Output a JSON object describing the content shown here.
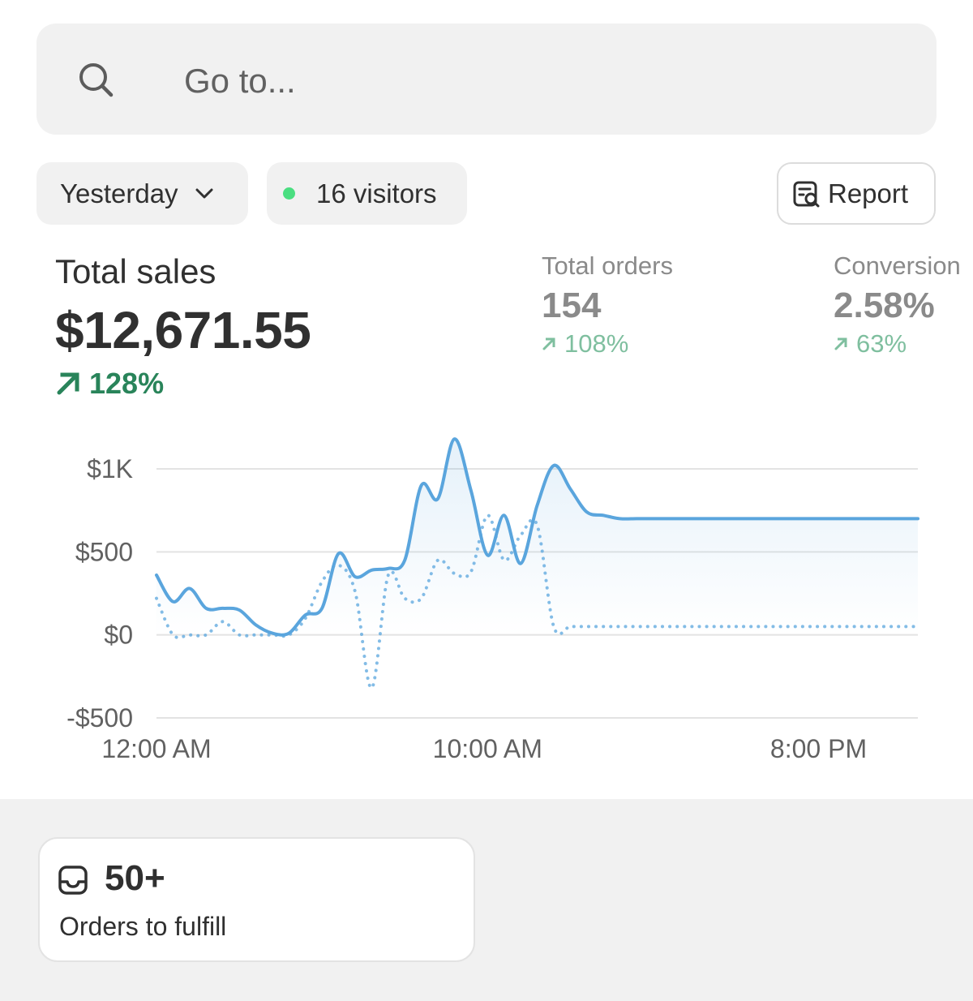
{
  "search": {
    "placeholder": "Go to..."
  },
  "filters": {
    "date_label": "Yesterday",
    "visitors_label": "16 visitors",
    "report_label": "Report"
  },
  "metrics": {
    "total_sales": {
      "label": "Total sales",
      "value": "$12,671.55",
      "change": "128%"
    },
    "total_orders": {
      "label": "Total orders",
      "value": "154",
      "change": "108%"
    },
    "conversion": {
      "label": "Conversion",
      "value": "2.58%",
      "change": "63%"
    }
  },
  "colors": {
    "accent_line": "#5aa5dd",
    "positive": "#29845a",
    "visitors_dot": "#4ade80"
  },
  "chart_data": {
    "type": "line",
    "title": "",
    "xlabel": "",
    "ylabel": "",
    "ylim": [
      -500,
      1000
    ],
    "y_ticks": [
      "$1K",
      "$500",
      "$0",
      "-$500"
    ],
    "y_tick_values": [
      1000,
      500,
      0,
      -500
    ],
    "x_tick_labels": [
      "12:00 AM",
      "10:00 AM",
      "8:00 PM"
    ],
    "x_tick_positions": [
      0,
      10,
      20
    ],
    "xlim": [
      0,
      23
    ],
    "grid": true,
    "series": [
      {
        "style": "solid",
        "x": [
          0,
          0.5,
          1,
          1.5,
          2,
          2.5,
          3,
          3.5,
          4,
          4.5,
          5,
          5.5,
          6,
          6.5,
          7,
          7.5,
          8,
          8.5,
          9,
          9.5,
          10,
          10.5,
          11,
          11.5,
          12,
          12.5,
          13,
          13.5,
          14,
          14.5,
          15,
          15.5,
          16,
          16.5,
          17,
          17.5,
          18,
          18.5,
          19,
          19.5,
          20,
          20.5,
          21,
          21.5,
          22,
          22.5,
          23
        ],
        "values": [
          360,
          200,
          280,
          160,
          160,
          150,
          60,
          10,
          10,
          120,
          160,
          490,
          350,
          390,
          400,
          450,
          900,
          820,
          1180,
          870,
          480,
          720,
          430,
          780,
          1020,
          880,
          740,
          720,
          700,
          700,
          700,
          700,
          700,
          700,
          700,
          700,
          700,
          700,
          700,
          700,
          700,
          700,
          700,
          700,
          700,
          700,
          700
        ]
      },
      {
        "style": "dotted",
        "x": [
          0,
          0.5,
          1,
          1.5,
          2,
          2.5,
          3,
          3.5,
          4,
          4.5,
          5,
          5.5,
          6,
          6.5,
          7,
          7.5,
          8,
          8.5,
          9,
          9.5,
          10,
          10.5,
          11,
          11.5,
          12,
          12.5,
          13,
          13.5,
          14,
          14.5,
          15,
          15.5,
          16,
          16.5,
          17,
          17.5,
          18,
          18.5,
          19,
          19.5,
          20,
          20.5,
          21,
          21.5,
          22,
          22.5,
          23
        ],
        "values": [
          220,
          0,
          0,
          0,
          80,
          0,
          0,
          0,
          0,
          100,
          320,
          420,
          260,
          -320,
          360,
          220,
          220,
          450,
          370,
          380,
          720,
          450,
          600,
          660,
          50,
          50,
          50,
          50,
          50,
          50,
          50,
          50,
          50,
          50,
          50,
          50,
          50,
          50,
          50,
          50,
          50,
          50,
          50,
          50,
          50,
          50,
          50
        ]
      }
    ]
  },
  "fulfill": {
    "count": "50+",
    "label": "Orders to fulfill"
  }
}
